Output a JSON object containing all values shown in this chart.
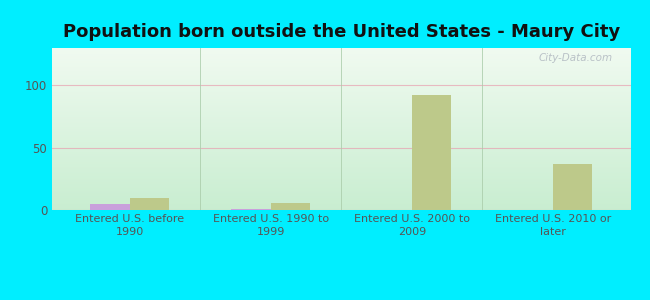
{
  "title": "Population born outside the United States - Maury City",
  "categories": [
    "Entered U.S. before\n1990",
    "Entered U.S. 1990 to\n1999",
    "Entered U.S. 2000 to\n2009",
    "Entered U.S. 2010 or\nlater"
  ],
  "native_values": [
    5,
    1,
    0,
    0
  ],
  "foreign_values": [
    10,
    6,
    92,
    37
  ],
  "native_color": "#c9a0dc",
  "foreign_color": "#bdc98a",
  "background_outer": "#00eeff",
  "background_inner_top": "#f0faf0",
  "background_inner_bottom": "#c8edd0",
  "ylim": [
    0,
    130
  ],
  "yticks": [
    0,
    50,
    100
  ],
  "bar_width": 0.28,
  "title_fontsize": 13,
  "tick_fontsize": 8,
  "legend_fontsize": 9.5,
  "grid_color": "#e8a0b0",
  "grid_alpha": 0.7,
  "divider_color": "#aaccaa",
  "watermark": "City-Data.com"
}
